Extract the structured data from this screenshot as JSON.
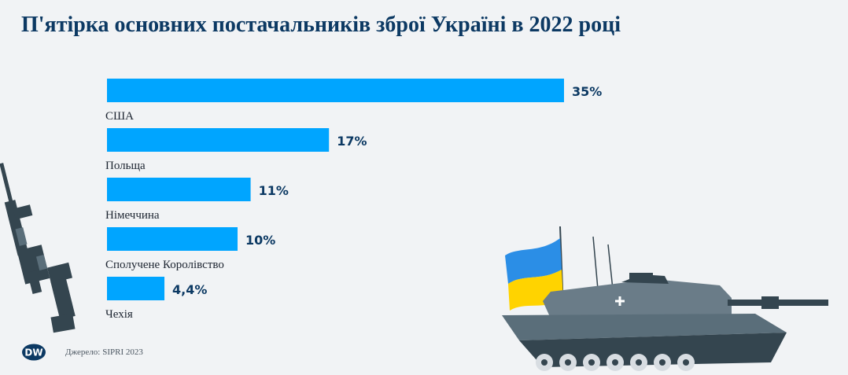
{
  "title": "П'ятірка основних постачальників зброї Україні в 2022 році",
  "source": {
    "label": "Джерело:",
    "value": "SIPRI 2023"
  },
  "logo": {
    "text": "DW",
    "icon": "dw-logo-icon"
  },
  "colors": {
    "bar": "#00a5ff",
    "title": "#0c3963",
    "background": "#f1f3f5"
  },
  "chart_data": {
    "type": "bar",
    "orientation": "horizontal",
    "title": "П'ятірка основних постачальників зброї Україні в 2022 році",
    "categories": [
      "США",
      "Польща",
      "Німеччина",
      "Сполучене Королівство",
      "Чехія"
    ],
    "values": [
      35,
      17,
      11,
      10,
      4.4
    ],
    "value_labels": [
      "35%",
      "17%",
      "11%",
      "10%",
      "4,4%"
    ],
    "unit": "%",
    "xlim": [
      0,
      35
    ],
    "grid": false,
    "legend": "none"
  }
}
